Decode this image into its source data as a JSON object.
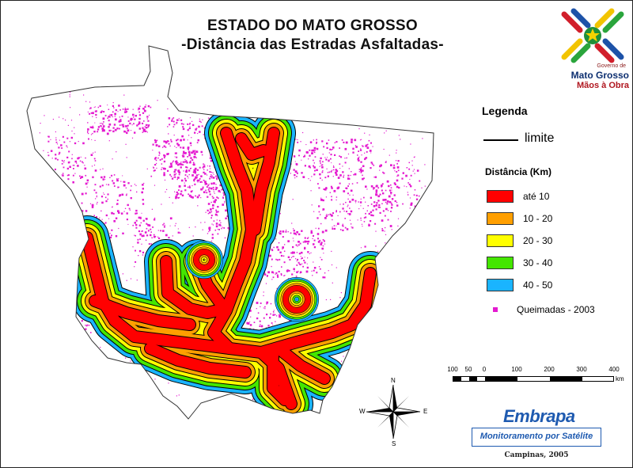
{
  "title": "ESTADO DO MATO GROSSO",
  "subtitle": "-Distância das Estradas Asfaltadas-",
  "legend": {
    "title": "Legenda",
    "boundary_label": "limite",
    "distance_title": "Distância (Km)",
    "classes": [
      {
        "label": "até 10",
        "color": "#ff0000"
      },
      {
        "label": "10 - 20",
        "color": "#ff9f00"
      },
      {
        "label": "20 - 30",
        "color": "#ffff00"
      },
      {
        "label": "30 - 40",
        "color": "#44e600"
      },
      {
        "label": "40 - 50",
        "color": "#1ab4ff"
      }
    ],
    "fire_label": "Queimadas - 2003",
    "fire_color": "#e41ad0"
  },
  "scale": {
    "ticks": [
      "100",
      "50",
      "0",
      "100",
      "200",
      "300",
      "400"
    ],
    "unit": "km"
  },
  "compass": {
    "n": "N",
    "s": "S",
    "e": "E",
    "w": "W"
  },
  "government_logo": {
    "line1": "Governo de",
    "line2": "Mato Grosso",
    "line3": "Mãos à Obra"
  },
  "embrapa": {
    "logo": "Embrapa",
    "subtitle": "Monitoramento por Satélite"
  },
  "credit": "Campinas, 2005"
}
